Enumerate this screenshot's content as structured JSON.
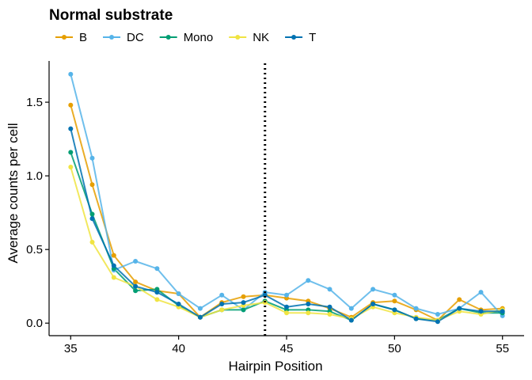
{
  "chart_data": {
    "type": "line",
    "title": "Normal substrate",
    "xlabel": "Hairpin Position",
    "ylabel": "Average counts per cell",
    "xlim": [
      34.0,
      56.0
    ],
    "ylim": [
      -0.085,
      1.78
    ],
    "x_ticks": [
      35,
      40,
      45,
      50,
      55
    ],
    "x_tick_labels": [
      "35",
      "40",
      "45",
      "50",
      "55"
    ],
    "y_ticks": [
      0.0,
      0.5,
      1.0,
      1.5
    ],
    "y_tick_labels": [
      "0.0",
      "0.5",
      "1.0",
      "1.5"
    ],
    "reference_line": {
      "x": 44,
      "style": "dotted"
    },
    "legend_position": "top",
    "grid": false,
    "x": [
      35,
      36,
      37,
      38,
      39,
      40,
      41,
      42,
      43,
      44,
      45,
      46,
      47,
      48,
      49,
      50,
      51,
      52,
      53,
      54,
      55
    ],
    "series": [
      {
        "name": "B",
        "color": "#E69F00",
        "values": [
          1.48,
          0.94,
          0.46,
          0.28,
          0.22,
          0.2,
          0.04,
          0.14,
          0.18,
          0.19,
          0.17,
          0.15,
          0.1,
          0.04,
          0.14,
          0.15,
          0.09,
          0.02,
          0.16,
          0.09,
          0.1
        ]
      },
      {
        "name": "DC",
        "color": "#56B4E9",
        "values": [
          1.69,
          1.12,
          0.36,
          0.42,
          0.37,
          0.2,
          0.1,
          0.19,
          0.09,
          0.21,
          0.19,
          0.29,
          0.23,
          0.1,
          0.23,
          0.19,
          0.1,
          0.06,
          0.1,
          0.21,
          0.05
        ]
      },
      {
        "name": "Mono",
        "color": "#009E73",
        "values": [
          1.16,
          0.74,
          0.37,
          0.22,
          0.23,
          0.12,
          0.04,
          0.09,
          0.09,
          0.15,
          0.09,
          0.09,
          0.08,
          0.02,
          0.13,
          0.09,
          0.03,
          0.02,
          0.1,
          0.07,
          0.07
        ]
      },
      {
        "name": "NK",
        "color": "#F0E442",
        "values": [
          1.06,
          0.55,
          0.31,
          0.25,
          0.16,
          0.11,
          0.04,
          0.09,
          0.12,
          0.14,
          0.07,
          0.07,
          0.06,
          0.03,
          0.11,
          0.07,
          0.04,
          0.02,
          0.08,
          0.06,
          0.09
        ]
      },
      {
        "name": "T",
        "color": "#0072B2",
        "values": [
          1.32,
          0.71,
          0.39,
          0.25,
          0.21,
          0.13,
          0.04,
          0.13,
          0.14,
          0.19,
          0.11,
          0.13,
          0.11,
          0.02,
          0.13,
          0.09,
          0.03,
          0.01,
          0.1,
          0.08,
          0.08
        ]
      }
    ]
  }
}
